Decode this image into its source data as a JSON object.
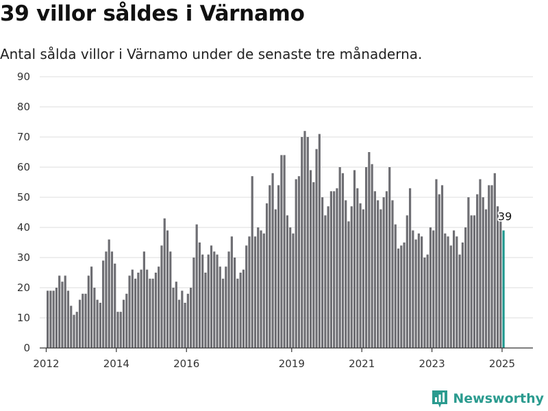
{
  "header": {
    "title": "39 villor såldes i Värnamo",
    "subtitle": "Antal sålda villor i Värnamo under de senaste tre månaderna."
  },
  "brand": {
    "name": "Newsworthy",
    "icon": "chart-logo-icon"
  },
  "colors": {
    "bar": "#6e6e73",
    "highlight": "#1e978d",
    "grid": "#dedede",
    "brand": "#2b9b8f"
  },
  "chart_data": {
    "type": "bar",
    "title": "39 villor såldes i Värnamo",
    "xlabel": "",
    "ylabel": "",
    "ylim": [
      0,
      90
    ],
    "yticks": [
      0,
      10,
      20,
      30,
      40,
      50,
      60,
      70,
      80,
      90
    ],
    "xticks": [
      "2012",
      "2014",
      "2016",
      "2019",
      "2021",
      "2023",
      "2025"
    ],
    "grid": true,
    "annotation": {
      "label": "39",
      "index": "last"
    },
    "series": [
      {
        "start": "2012-01",
        "values": [
          19,
          19,
          19,
          20,
          24,
          22,
          24,
          19,
          14,
          11,
          12,
          16,
          18,
          18,
          24,
          27,
          20,
          16,
          15,
          29,
          32,
          36,
          32,
          28
        ]
      },
      {
        "start": "2014-01",
        "values": [
          12,
          12,
          16,
          18,
          24,
          26,
          23,
          25,
          26,
          32,
          26,
          23,
          23,
          25,
          27,
          34,
          43,
          39,
          32,
          20,
          22,
          16,
          19,
          15,
          18,
          20,
          30,
          41,
          35,
          31,
          25,
          31,
          34,
          32,
          31,
          27,
          23,
          27,
          32,
          37,
          30,
          23,
          25,
          26,
          34,
          37,
          57,
          37,
          40,
          39,
          38,
          48,
          54,
          58,
          46,
          54,
          64,
          64,
          44,
          40,
          38,
          56,
          57,
          70,
          72,
          70,
          59,
          55,
          66,
          71,
          50,
          44,
          47,
          52,
          52,
          53,
          60,
          58,
          49,
          42,
          47,
          59,
          53,
          48,
          46,
          60,
          65,
          61,
          52,
          49,
          46,
          50,
          52,
          60,
          49,
          41,
          33,
          34,
          35,
          44,
          53,
          39,
          36,
          38,
          37,
          30,
          31,
          40,
          39,
          56,
          51,
          54,
          38,
          37,
          34,
          39,
          37,
          31,
          35,
          40,
          50,
          44,
          44,
          51,
          56,
          50,
          46,
          54,
          54,
          58,
          47,
          42,
          39
        ]
      }
    ]
  }
}
